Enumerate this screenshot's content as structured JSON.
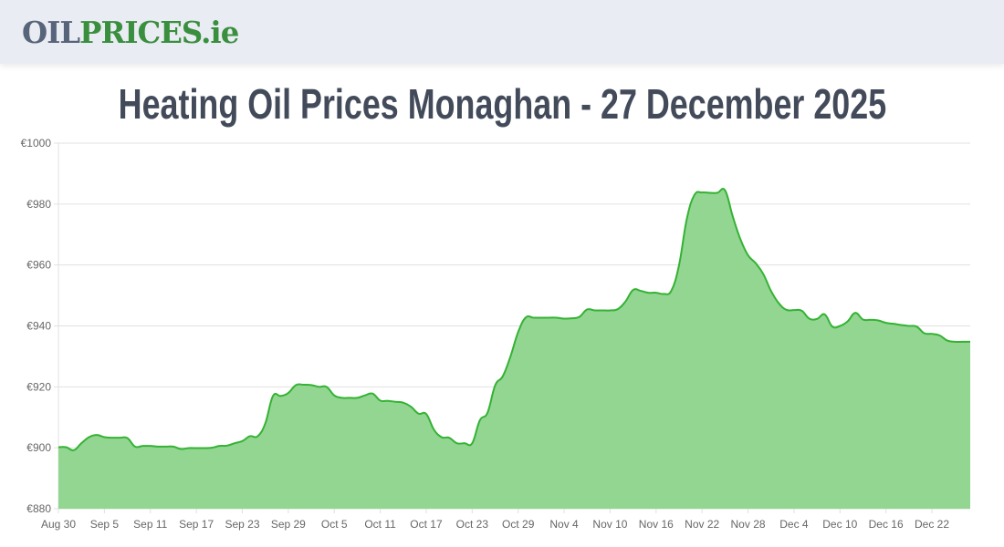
{
  "header": {
    "logo_part1": "OIL",
    "logo_part2": "PRICES.ie"
  },
  "page_title": "Heating Oil Prices Monaghan - 27 December 2025",
  "colors": {
    "line": "#34b233",
    "fill": "#92d692",
    "grid": "#e0e0e0",
    "title": "#434b5b",
    "logo_grey": "#58647a",
    "logo_green": "#3a8f3e"
  },
  "chart_data": {
    "type": "area",
    "title": "",
    "xlabel": "",
    "ylabel": "",
    "ylim": [
      880,
      1000
    ],
    "grid": true,
    "legend": "none",
    "y_ticks": [
      "€880",
      "€900",
      "€920",
      "€940",
      "€960",
      "€980",
      "€1000"
    ],
    "y_tick_values": [
      880,
      900,
      920,
      940,
      960,
      980,
      1000
    ],
    "x_ticks": [
      "Aug 30",
      "Sep 5",
      "Sep 11",
      "Sep 17",
      "Sep 23",
      "Sep 29",
      "Oct 5",
      "Oct 11",
      "Oct 17",
      "Oct 23",
      "Oct 29",
      "Nov 4",
      "Nov 10",
      "Nov 16",
      "Nov 22",
      "Nov 28",
      "Dec 4",
      "Dec 10",
      "Dec 16",
      "Dec 22"
    ],
    "x": [
      "Aug 30",
      "Aug 31",
      "Sep 1",
      "Sep 2",
      "Sep 3",
      "Sep 4",
      "Sep 5",
      "Sep 6",
      "Sep 7",
      "Sep 8",
      "Sep 9",
      "Sep 10",
      "Sep 11",
      "Sep 12",
      "Sep 13",
      "Sep 14",
      "Sep 15",
      "Sep 16",
      "Sep 17",
      "Sep 18",
      "Sep 19",
      "Sep 20",
      "Sep 21",
      "Sep 22",
      "Sep 23",
      "Sep 24",
      "Sep 25",
      "Sep 26",
      "Sep 27",
      "Sep 28",
      "Sep 29",
      "Sep 30",
      "Oct 1",
      "Oct 2",
      "Oct 3",
      "Oct 4",
      "Oct 5",
      "Oct 6",
      "Oct 7",
      "Oct 8",
      "Oct 9",
      "Oct 10",
      "Oct 11",
      "Oct 12",
      "Oct 13",
      "Oct 14",
      "Oct 15",
      "Oct 16",
      "Oct 17",
      "Oct 18",
      "Oct 19",
      "Oct 20",
      "Oct 21",
      "Oct 22",
      "Oct 23",
      "Oct 24",
      "Oct 25",
      "Oct 26",
      "Oct 27",
      "Oct 28",
      "Oct 29",
      "Oct 30",
      "Oct 31",
      "Nov 1",
      "Nov 2",
      "Nov 3",
      "Nov 4",
      "Nov 5",
      "Nov 6",
      "Nov 7",
      "Nov 8",
      "Nov 9",
      "Nov 10",
      "Nov 11",
      "Nov 12",
      "Nov 13",
      "Nov 14",
      "Nov 15",
      "Nov 16",
      "Nov 17",
      "Nov 18",
      "Nov 19",
      "Nov 20",
      "Nov 21",
      "Nov 22",
      "Nov 23",
      "Nov 24",
      "Nov 25",
      "Nov 26",
      "Nov 27",
      "Nov 28",
      "Nov 29",
      "Nov 30",
      "Dec 1",
      "Dec 2",
      "Dec 3",
      "Dec 4",
      "Dec 5",
      "Dec 6",
      "Dec 7",
      "Dec 8",
      "Dec 9",
      "Dec 10",
      "Dec 11",
      "Dec 12",
      "Dec 13",
      "Dec 14",
      "Dec 15",
      "Dec 16",
      "Dec 17",
      "Dec 18",
      "Dec 19",
      "Dec 20",
      "Dec 21",
      "Dec 22",
      "Dec 23",
      "Dec 24",
      "Dec 25",
      "Dec 26",
      "Dec 27"
    ],
    "values": [
      900.2,
      900.2,
      899.2,
      901.5,
      903.5,
      904.2,
      903.5,
      903.3,
      903.3,
      903.2,
      900.4,
      900.6,
      900.6,
      900.4,
      900.4,
      900.4,
      899.6,
      899.9,
      899.9,
      899.9,
      900.0,
      900.6,
      900.7,
      901.5,
      902.2,
      903.8,
      903.8,
      908.0,
      917.0,
      917.0,
      918.0,
      920.6,
      920.7,
      920.6,
      920.0,
      920.0,
      917.2,
      916.4,
      916.4,
      916.4,
      917.2,
      917.8,
      915.5,
      915.4,
      915.1,
      914.8,
      913.5,
      911.2,
      911.1,
      906.0,
      903.5,
      903.3,
      901.5,
      901.5,
      901.5,
      909.0,
      911.5,
      920.5,
      923.5,
      930.0,
      938.0,
      942.8,
      942.7,
      942.7,
      942.7,
      942.7,
      942.4,
      942.5,
      943.0,
      945.4,
      945.1,
      945.1,
      945.1,
      945.5,
      948.0,
      951.8,
      951.5,
      950.9,
      950.9,
      950.5,
      951.6,
      960.0,
      975.0,
      983.0,
      983.8,
      983.7,
      983.7,
      984.5,
      976.0,
      968.5,
      963.2,
      960.6,
      957.0,
      951.5,
      947.5,
      945.3,
      945.2,
      945.0,
      942.4,
      942.3,
      943.8,
      939.8,
      940.0,
      941.5,
      944.3,
      942.1,
      942.0,
      941.8,
      941.0,
      940.7,
      940.3,
      940.0,
      939.8,
      937.6,
      937.4,
      936.9,
      935.2,
      934.8,
      934.8,
      934.8
    ]
  }
}
